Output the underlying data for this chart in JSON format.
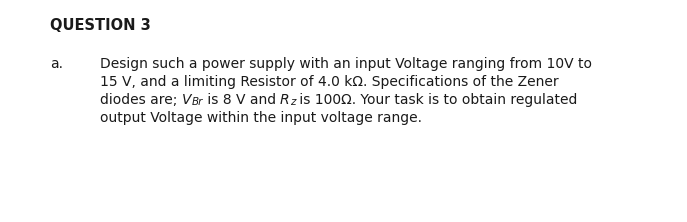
{
  "title": "QUESTION 3",
  "item_label": "a.",
  "line1": "Design such a power supply with an input Voltage ranging from 10V to",
  "line2": "15 V, and a limiting Resistor of 4.0 kΩ. Specifications of the Zener",
  "line3_part1": "diodes are; ",
  "line3_V": "V",
  "line3_Br": "Br",
  "line3_part2": " is 8 V and ",
  "line3_R": "R",
  "line3_z": "z",
  "line3_part3": " is 100Ω. Your task is to obtain regulated",
  "line4": "output Voltage within the input voltage range.",
  "bg_color": "#ffffff",
  "text_color": "#1a1a1a",
  "title_fontsize": 10.5,
  "body_fontsize": 10.0,
  "sub_fontsize": 7.5
}
